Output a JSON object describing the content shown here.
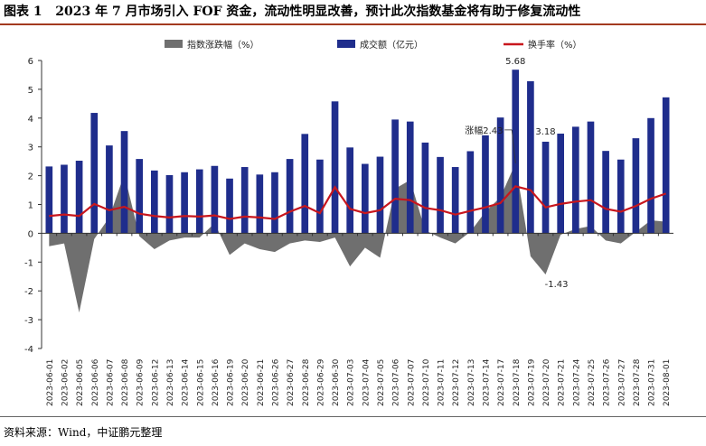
{
  "header": {
    "figure_label": "图表 1",
    "title": "2023 年 7 月市场引入 FOF 资金，流动性明显改善，预计此次指数基金将有助于修复流动性"
  },
  "footer": {
    "source": "资料来源：Wind，中证鹏元整理"
  },
  "colors": {
    "area": "#6f6f6f",
    "bar": "#1f2d8c",
    "line": "#c8161d",
    "title_rule": "#a33a1f"
  },
  "chart_data": {
    "type": "bar",
    "ylim": [
      -4,
      6
    ],
    "yticks": [
      -4,
      -3,
      -2,
      -1,
      0,
      1,
      2,
      3,
      4,
      5,
      6
    ],
    "grid": false,
    "legend_position": "top",
    "categories": [
      "2023-06-01",
      "2023-06-02",
      "2023-06-05",
      "2023-06-06",
      "2023-06-07",
      "2023-06-08",
      "2023-06-09",
      "2023-06-12",
      "2023-06-13",
      "2023-06-14",
      "2023-06-15",
      "2023-06-16",
      "2023-06-19",
      "2023-06-20",
      "2023-06-21",
      "2023-06-26",
      "2023-06-27",
      "2023-06-28",
      "2023-06-29",
      "2023-06-30",
      "2023-07-03",
      "2023-07-04",
      "2023-07-05",
      "2023-07-06",
      "2023-07-07",
      "2023-07-10",
      "2023-07-11",
      "2023-07-12",
      "2023-07-13",
      "2023-07-14",
      "2023-07-17",
      "2023-07-18",
      "2023-07-19",
      "2023-07-20",
      "2023-07-21",
      "2023-07-24",
      "2023-07-25",
      "2023-07-26",
      "2023-07-27",
      "2023-07-28",
      "2023-07-31",
      "2023-08-01"
    ],
    "series": [
      {
        "name": "指数涨跌幅（%）",
        "kind": "area",
        "values": [
          -0.45,
          -0.35,
          -2.75,
          -0.2,
          0.55,
          2.05,
          -0.1,
          -0.55,
          -0.25,
          -0.15,
          -0.15,
          0.35,
          -0.75,
          -0.35,
          -0.55,
          -0.65,
          -0.35,
          -0.25,
          -0.3,
          -0.15,
          -1.15,
          -0.5,
          -0.85,
          1.55,
          1.85,
          0.1,
          -0.15,
          -0.35,
          0.05,
          0.75,
          1.25,
          2.43,
          -0.8,
          -1.43,
          -0.05,
          0.15,
          0.25,
          -0.25,
          -0.35,
          0.05,
          0.45,
          0.4
        ]
      },
      {
        "name": "成交额（亿元）",
        "kind": "bar",
        "values": [
          2.32,
          2.38,
          2.52,
          4.18,
          3.05,
          3.55,
          2.58,
          2.18,
          2.02,
          2.12,
          2.22,
          2.34,
          1.9,
          2.3,
          2.04,
          2.12,
          2.58,
          3.45,
          2.56,
          4.58,
          2.98,
          2.41,
          2.66,
          3.95,
          3.88,
          3.15,
          2.65,
          2.3,
          2.85,
          3.4,
          4.02,
          5.68,
          5.28,
          3.18,
          3.46,
          3.7,
          3.88,
          2.86,
          2.56,
          3.3,
          4.0,
          4.72
        ]
      },
      {
        "name": "换手率（%）",
        "kind": "line",
        "values": [
          0.6,
          0.65,
          0.6,
          1.02,
          0.8,
          0.92,
          0.68,
          0.6,
          0.55,
          0.6,
          0.58,
          0.62,
          0.5,
          0.58,
          0.55,
          0.5,
          0.75,
          0.95,
          0.7,
          1.6,
          0.85,
          0.7,
          0.8,
          1.2,
          1.15,
          0.88,
          0.8,
          0.65,
          0.78,
          0.9,
          1.05,
          1.63,
          1.5,
          0.9,
          1.02,
          1.1,
          1.15,
          0.85,
          0.75,
          0.95,
          1.2,
          1.38
        ]
      }
    ],
    "annotations": [
      {
        "text": "5.68",
        "series": 1,
        "index": 31
      },
      {
        "text": "3.18",
        "series": 1,
        "index": 33
      },
      {
        "text": "-1.43",
        "series": 0,
        "index": 33
      },
      {
        "text": "涨幅2.43",
        "series": 0,
        "index": 31
      }
    ]
  }
}
